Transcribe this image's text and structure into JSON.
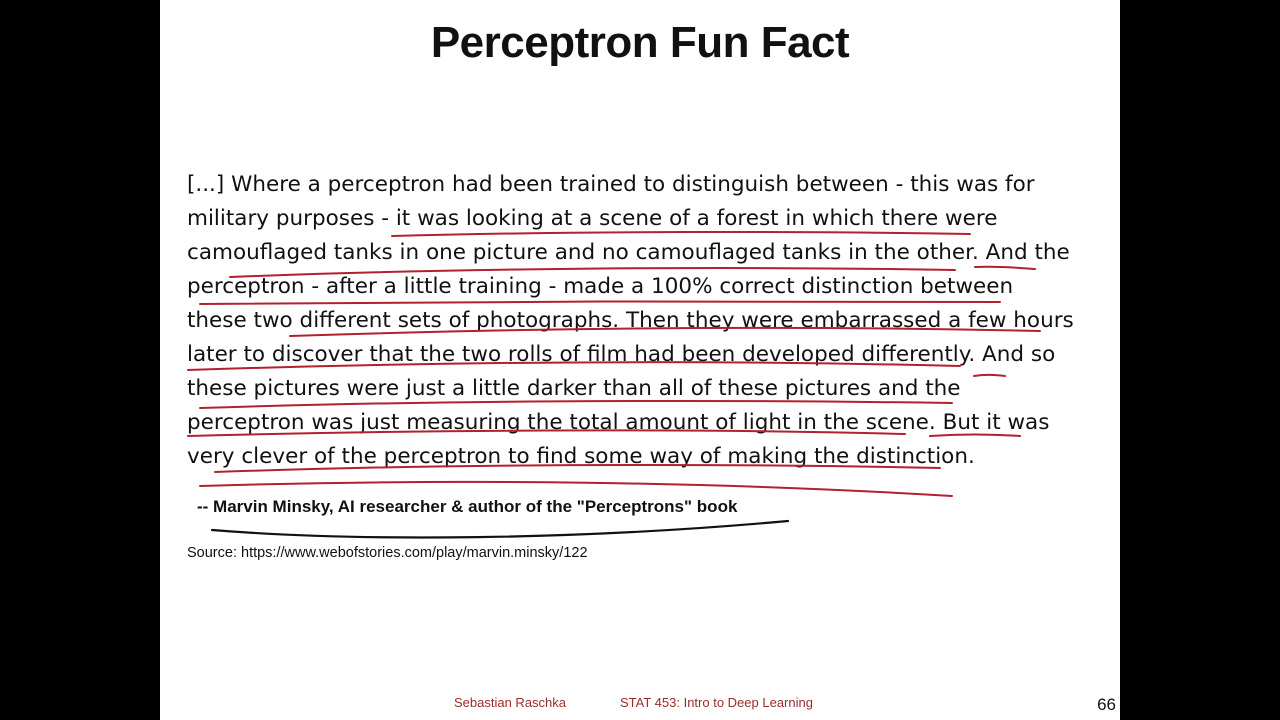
{
  "slide": {
    "title": "Perceptron Fun Fact",
    "quote_lines": [
      "[...] Where a perceptron had been trained to distinguish between - this was for",
      "military purposes - it was looking at a scene of a forest in which there were",
      "camouflaged tanks in one picture and no camouflaged tanks in the other. And the",
      "perceptron - after a little training - made a 100% correct distinction between",
      "these two different sets of photographs. Then they were embarrassed a few hours",
      "later to discover that the two rolls of film had been developed differently. And so",
      "these pictures were just a little darker than all of these pictures and the",
      "perceptron was just measuring the total amount of light in the scene. But it was",
      "very clever of the perceptron to find some way of making the distinction."
    ],
    "attribution": "-- Marvin Minsky, AI researcher & author of the \"Perceptrons\" book",
    "source": "Source: https://www.webofstories.com/play/marvin.minsky/122",
    "footer": {
      "author": "Sebastian Raschka",
      "course": "STAT 453: Intro to Deep Learning",
      "page_number": "66"
    }
  },
  "colors": {
    "annotation_red": "#b3202e",
    "annotation_black": "#111111",
    "footer_text": "#9b2c2c"
  }
}
